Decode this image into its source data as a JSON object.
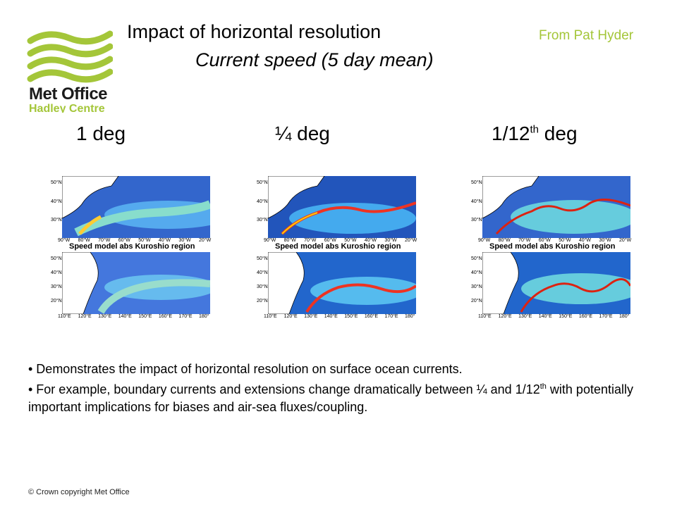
{
  "logo": {
    "line1": "Met Office",
    "line2": "Hadley Centre",
    "color": "#a4c639"
  },
  "header": {
    "title": "Impact of horizontal resolution",
    "subtitle": "Current speed (5 day mean)",
    "credit": "From Pat Hyder"
  },
  "columns": [
    {
      "label": "1 deg",
      "sup": ""
    },
    {
      "label": "¼ deg",
      "sup": ""
    },
    {
      "label": "1/12",
      "sup": "th",
      "suffix": " deg"
    }
  ],
  "panel_caption": "Speed model abs Kuroshio region",
  "atlantic_lat_ticks": [
    "50°N",
    "40°N",
    "30°N"
  ],
  "atlantic_lon_ticks": [
    "90°W",
    "80°W",
    "70°W",
    "60°W",
    "50°W",
    "40°W",
    "30°W",
    "20°W"
  ],
  "pacific_lat_ticks": [
    "50°N",
    "40°N",
    "30°N",
    "20°N"
  ],
  "pacific_lon_ticks": [
    "110°E",
    "120°E",
    "130°E",
    "140°E",
    "150°E",
    "160°E",
    "170°E",
    "180°"
  ],
  "bullets": {
    "b1": "• Demonstrates the impact of horizontal resolution on surface ocean currents.",
    "b2_pre": "• For example, boundary currents and extensions change dramatically between ¼ and 1/12",
    "b2_sup": "th",
    "b2_post": " with potentially important implications for biases and air-sea fluxes/coupling."
  },
  "footer": "© Crown copyright   Met Office"
}
